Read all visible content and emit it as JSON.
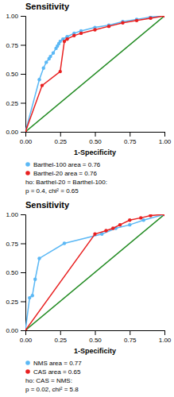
{
  "chart_data": [
    {
      "type": "line",
      "title": "Sensitivity",
      "x_label": "1-Specificity",
      "xlim": [
        0,
        1
      ],
      "ylim": [
        0,
        1
      ],
      "xticks": [
        {
          "value": 0,
          "label": "0.00"
        },
        {
          "value": 0.25,
          "label": "0.25"
        },
        {
          "value": 0.5,
          "label": "0.50"
        },
        {
          "value": 0.75,
          "label": "0.75"
        },
        {
          "value": 1,
          "label": "1.00"
        }
      ],
      "yticks": [
        {
          "value": 0,
          "label": "0.00"
        },
        {
          "value": 0.25,
          "label": "0.25"
        },
        {
          "value": 0.5,
          "label": "0.50"
        },
        {
          "value": 0.75,
          "label": "0.75"
        },
        {
          "value": 1,
          "label": "1.00"
        }
      ],
      "series": [
        {
          "color": "#228B22",
          "x": [
            0,
            1
          ],
          "values": [
            0,
            1
          ]
        },
        {
          "name": "Barthel-100 area = 0.76",
          "color": "#5BB8F5",
          "marker": "circle",
          "x": [
            0.0,
            0.1,
            0.13,
            0.15,
            0.17,
            0.18,
            0.2,
            0.22,
            0.23,
            0.24,
            0.25,
            0.27,
            0.3,
            0.35,
            0.4,
            0.5,
            0.6,
            0.7,
            0.8,
            0.9,
            1.0
          ],
          "values": [
            0.0,
            0.45,
            0.55,
            0.6,
            0.63,
            0.65,
            0.68,
            0.72,
            0.74,
            0.76,
            0.78,
            0.8,
            0.82,
            0.85,
            0.87,
            0.9,
            0.92,
            0.95,
            0.97,
            0.99,
            1.0
          ]
        },
        {
          "name": "Barthel-20 area = 0.76",
          "color": "#E82020",
          "marker": "circle",
          "x": [
            0.0,
            0.12,
            0.25,
            0.28,
            0.3,
            0.35,
            0.4,
            0.5,
            0.6,
            0.7,
            0.8,
            0.9,
            1.0
          ],
          "values": [
            0.0,
            0.4,
            0.52,
            0.78,
            0.8,
            0.83,
            0.85,
            0.88,
            0.91,
            0.94,
            0.96,
            0.98,
            1.0
          ]
        }
      ],
      "annotations": [
        "ho: Barthel-20 = Barthel-100:",
        "p = 0.4, chi² = 0.65"
      ]
    },
    {
      "type": "line",
      "title": "Sensitivity",
      "x_label": "1-Specificity",
      "xlim": [
        0,
        1
      ],
      "ylim": [
        0,
        1
      ],
      "xticks": [
        {
          "value": 0,
          "label": "0.00"
        },
        {
          "value": 0.25,
          "label": "0.25"
        },
        {
          "value": 0.5,
          "label": "0.50"
        },
        {
          "value": 0.75,
          "label": "0.75"
        },
        {
          "value": 1,
          "label": "1.00"
        }
      ],
      "yticks": [
        {
          "value": 0,
          "label": "0.00"
        },
        {
          "value": 0.25,
          "label": "0.25"
        },
        {
          "value": 0.5,
          "label": "0.50"
        },
        {
          "value": 0.75,
          "label": "0.75"
        },
        {
          "value": 1,
          "label": "1.00"
        }
      ],
      "series": [
        {
          "color": "#228B22",
          "x": [
            0,
            1
          ],
          "values": [
            0,
            1
          ]
        },
        {
          "name": "NMS area = 0.77",
          "color": "#5BB8F5",
          "marker": "circle",
          "x": [
            0.0,
            0.03,
            0.05,
            0.07,
            0.1,
            0.28,
            0.55,
            0.65,
            0.75,
            0.85,
            1.0
          ],
          "values": [
            0.0,
            0.28,
            0.3,
            0.44,
            0.62,
            0.75,
            0.83,
            0.88,
            0.91,
            0.95,
            1.0
          ]
        },
        {
          "name": "CAS area = 0.65",
          "color": "#E82020",
          "marker": "circle",
          "x": [
            0.0,
            0.5,
            0.58,
            0.63,
            0.68,
            0.75,
            0.83,
            0.9,
            1.0
          ],
          "values": [
            0.0,
            0.83,
            0.86,
            0.88,
            0.91,
            0.95,
            0.97,
            0.99,
            1.0
          ]
        }
      ],
      "annotations": [
        "ho: CAS = NMS:",
        "p = 0.02, chi² = 5.8"
      ]
    }
  ]
}
